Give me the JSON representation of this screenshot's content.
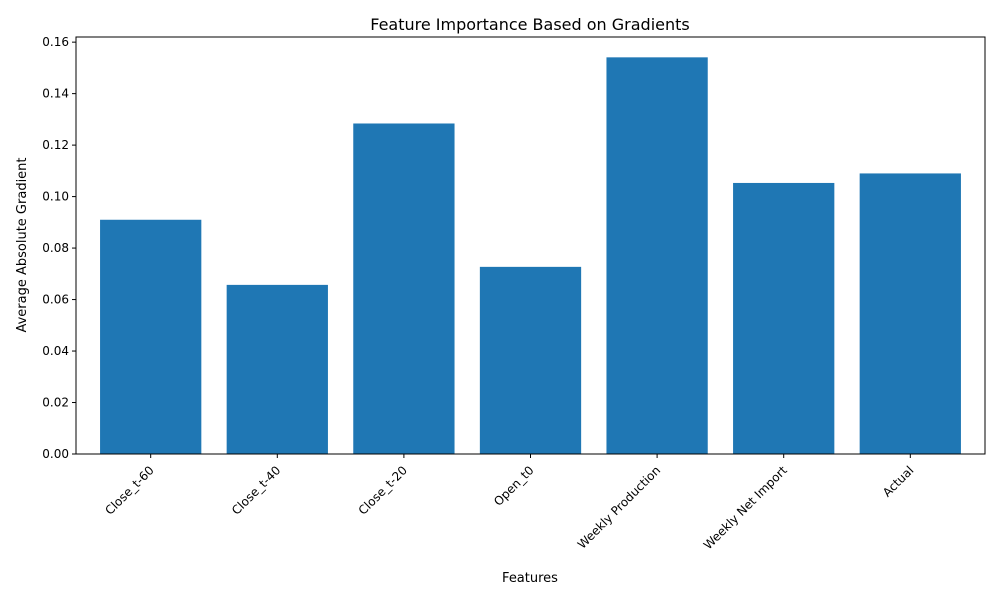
{
  "chart_data": {
    "type": "bar",
    "title": "Feature Importance Based on Gradients",
    "xlabel": "Features",
    "ylabel": "Average Absolute Gradient",
    "categories": [
      "Close_t-60",
      "Close_t-40",
      "Close_t-20",
      "Open_t0",
      "Weekly Production",
      "Weekly Net Import",
      "Actual"
    ],
    "values": [
      0.091,
      0.0657,
      0.1284,
      0.0727,
      0.1541,
      0.1053,
      0.109
    ],
    "ylim": [
      0,
      0.162
    ],
    "yticks": [
      "0.00",
      "0.02",
      "0.04",
      "0.06",
      "0.08",
      "0.10",
      "0.12",
      "0.14",
      "0.16"
    ],
    "bar_color": "#1f77b4",
    "grid": false,
    "legend": "none"
  }
}
